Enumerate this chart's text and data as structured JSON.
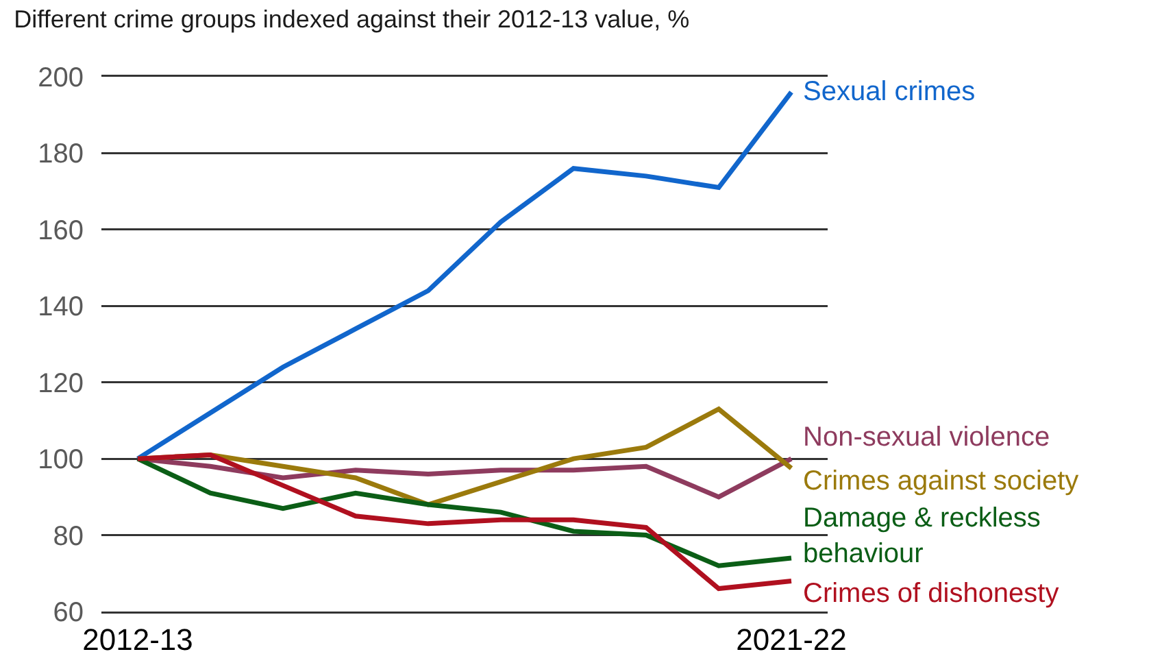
{
  "chart_data": {
    "type": "line",
    "title": "Different crime groups indexed against their 2012-13 value, %",
    "categories": [
      "2012-13",
      null,
      null,
      null,
      null,
      null,
      null,
      null,
      null,
      "2021-22"
    ],
    "series": [
      {
        "name": "Sexual crimes",
        "color": "#1166cc",
        "values": [
          100,
          112,
          124,
          134,
          144,
          162,
          176,
          174,
          171,
          196
        ]
      },
      {
        "name": "Non-sexual violence",
        "color": "#8e3b5e",
        "values": [
          100,
          98,
          95,
          97,
          96,
          97,
          97,
          98,
          90,
          100
        ]
      },
      {
        "name": "Crimes against society",
        "color": "#9b7a0c",
        "values": [
          100,
          101,
          98,
          95,
          88,
          94,
          100,
          103,
          113,
          97.5
        ]
      },
      {
        "name": "Damage & reckless behaviour",
        "color": "#0b5e16",
        "values": [
          100,
          91,
          87,
          91,
          88,
          86,
          81,
          80,
          72,
          74
        ]
      },
      {
        "name": "Crimes of dishonesty",
        "color": "#b0101f",
        "values": [
          100,
          101,
          93,
          85,
          83,
          84,
          84,
          82,
          66,
          68
        ]
      }
    ],
    "ylim": [
      60,
      200
    ],
    "yticks": [
      60,
      80,
      100,
      120,
      140,
      160,
      180,
      200
    ],
    "grid": "y",
    "legend": false,
    "line_style": "solid",
    "marker": "none"
  }
}
